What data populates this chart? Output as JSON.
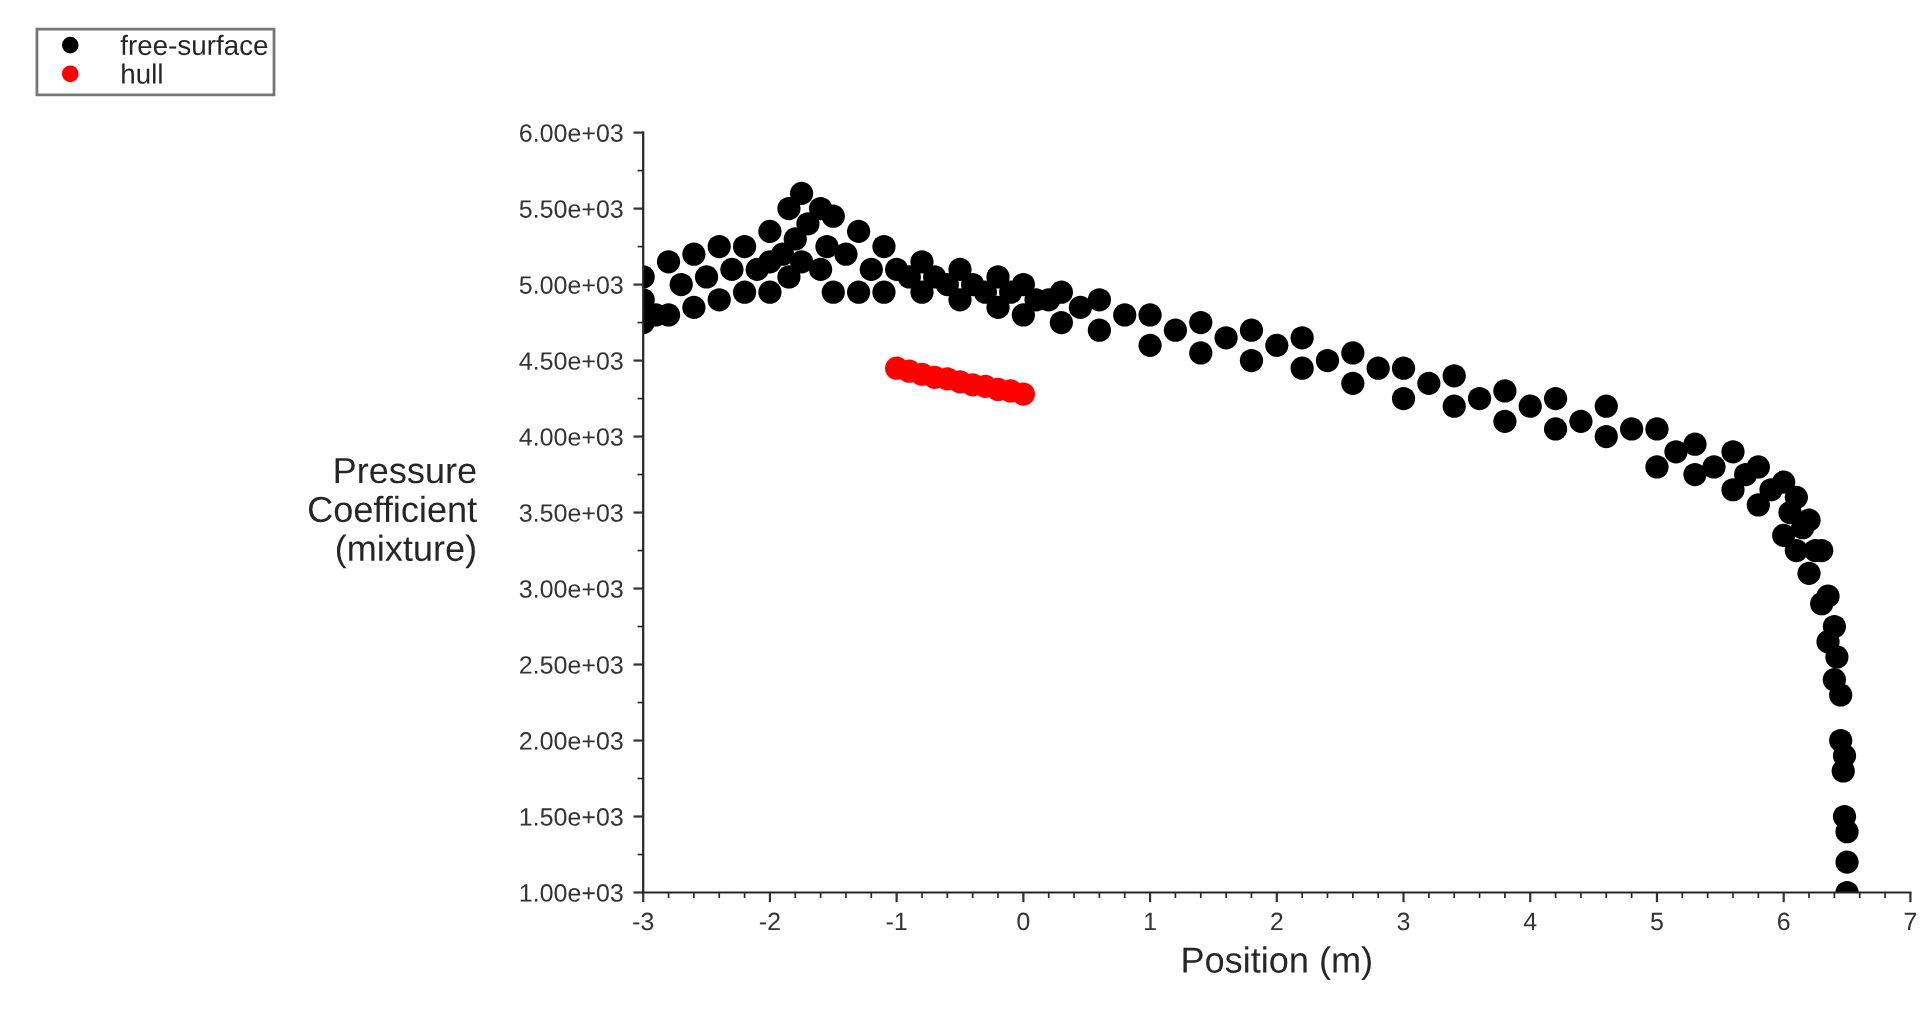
{
  "chart_data": {
    "type": "scatter",
    "xlabel": "Position (m)",
    "ylabel": "Pressure\nCoefficient\n(mixture)",
    "xlim": [
      -3,
      7
    ],
    "xticks": [
      -3,
      -2,
      -1,
      0,
      1,
      2,
      3,
      4,
      5,
      6,
      7
    ],
    "ylim": [
      1000,
      6000
    ],
    "yticks": [
      {
        "value": 1000,
        "label": "1.00e+03"
      },
      {
        "value": 1500,
        "label": "1.50e+03"
      },
      {
        "value": 2000,
        "label": "2.00e+03"
      },
      {
        "value": 2500,
        "label": "2.50e+03"
      },
      {
        "value": 3000,
        "label": "3.00e+03"
      },
      {
        "value": 3500,
        "label": "3.50e+03"
      },
      {
        "value": 4000,
        "label": "4.00e+03"
      },
      {
        "value": 4500,
        "label": "4.50e+03"
      },
      {
        "value": 5000,
        "label": "5.00e+03"
      },
      {
        "value": 5500,
        "label": "5.50e+03"
      },
      {
        "value": 6000,
        "label": "6.00e+03"
      }
    ],
    "grid": false,
    "legend": "top left",
    "marker": "circle",
    "series": [
      {
        "name": "free-surface",
        "color": "#000000",
        "x": [
          -3,
          -3,
          -3,
          -2.9,
          -2.8,
          -2.8,
          -2.7,
          -2.6,
          -2.6,
          -2.5,
          -2.4,
          -2.4,
          -2.3,
          -2.2,
          -2.2,
          -2.1,
          -2,
          -2,
          -2,
          -1.9,
          -1.85,
          -1.85,
          -1.8,
          -1.75,
          -1.75,
          -1.7,
          -1.6,
          -1.6,
          -1.55,
          -1.5,
          -1.5,
          -1.4,
          -1.3,
          -1.3,
          -1.2,
          -1.1,
          -1.1,
          -1,
          -0.9,
          -0.8,
          -0.8,
          -0.7,
          -0.6,
          -0.5,
          -0.5,
          -0.4,
          -0.3,
          -0.2,
          -0.2,
          -0.1,
          0,
          0,
          0.1,
          0.2,
          0.3,
          0.3,
          0.45,
          0.6,
          0.6,
          0.8,
          1,
          1,
          1.2,
          1.4,
          1.4,
          1.6,
          1.8,
          1.8,
          2,
          2.2,
          2.2,
          2.4,
          2.6,
          2.6,
          2.8,
          3,
          3,
          3.2,
          3.4,
          3.4,
          3.6,
          3.8,
          3.8,
          4,
          4.2,
          4.2,
          4.4,
          4.6,
          4.6,
          4.8,
          5,
          5,
          5.15,
          5.3,
          5.3,
          5.45,
          5.6,
          5.6,
          5.7,
          5.8,
          5.8,
          5.9,
          6,
          6,
          6.05,
          6.1,
          6.1,
          6.15,
          6.2,
          6.2,
          6.25,
          6.3,
          6.3,
          6.35,
          6.35,
          6.4,
          6.4,
          6.42,
          6.45,
          6.45,
          6.47,
          6.48,
          6.48,
          6.5,
          6.5,
          6.5
        ],
        "values": [
          4750,
          4900,
          5050,
          4800,
          4800,
          5150,
          5000,
          4850,
          5200,
          5050,
          4900,
          5250,
          5100,
          4950,
          5250,
          5100,
          4950,
          5150,
          5350,
          5200,
          5050,
          5500,
          5300,
          5150,
          5600,
          5400,
          5100,
          5500,
          5250,
          4950,
          5450,
          5200,
          4950,
          5350,
          5100,
          4950,
          5250,
          5100,
          5050,
          4950,
          5150,
          5050,
          5000,
          4900,
          5100,
          5000,
          4950,
          4850,
          5050,
          4950,
          4800,
          5000,
          4900,
          4900,
          4750,
          4950,
          4850,
          4700,
          4900,
          4800,
          4600,
          4800,
          4700,
          4550,
          4750,
          4650,
          4500,
          4700,
          4600,
          4450,
          4650,
          4500,
          4350,
          4550,
          4450,
          4250,
          4450,
          4350,
          4200,
          4400,
          4250,
          4100,
          4300,
          4200,
          4050,
          4250,
          4100,
          4000,
          4200,
          4050,
          3800,
          4050,
          3900,
          3750,
          3950,
          3800,
          3650,
          3900,
          3750,
          3550,
          3800,
          3650,
          3350,
          3700,
          3500,
          3250,
          3600,
          3400,
          3100,
          3450,
          3250,
          2900,
          3250,
          2650,
          2950,
          2400,
          2750,
          2550,
          2000,
          2300,
          1800,
          1500,
          1900,
          1000,
          1200,
          1400
        ]
      },
      {
        "name": "hull",
        "color": "#ff0000",
        "x": [
          -1,
          -0.9,
          -0.8,
          -0.7,
          -0.6,
          -0.5,
          -0.4,
          -0.3,
          -0.2,
          -0.1,
          0
        ],
        "values": [
          4450,
          4430,
          4410,
          4390,
          4380,
          4360,
          4340,
          4330,
          4310,
          4300,
          4280
        ]
      }
    ]
  }
}
